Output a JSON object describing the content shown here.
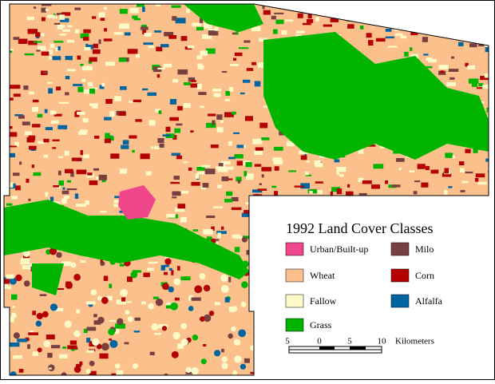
{
  "legend": {
    "title": "1992 Land Cover Classes",
    "classes": [
      {
        "name": "Urban/Built-up",
        "color": "#f0468c"
      },
      {
        "name": "Wheat",
        "color": "#fbc08c"
      },
      {
        "name": "Fallow",
        "color": "#fefac8"
      },
      {
        "name": "Grass",
        "color": "#00b400"
      },
      {
        "name": "Milo",
        "color": "#784040"
      },
      {
        "name": "Corn",
        "color": "#b40000"
      },
      {
        "name": "Alfalfa",
        "color": "#0064a0"
      }
    ]
  },
  "scale_bar": {
    "ticks": [
      "5",
      "0",
      "5",
      "10"
    ],
    "unit": "Kilometers"
  }
}
